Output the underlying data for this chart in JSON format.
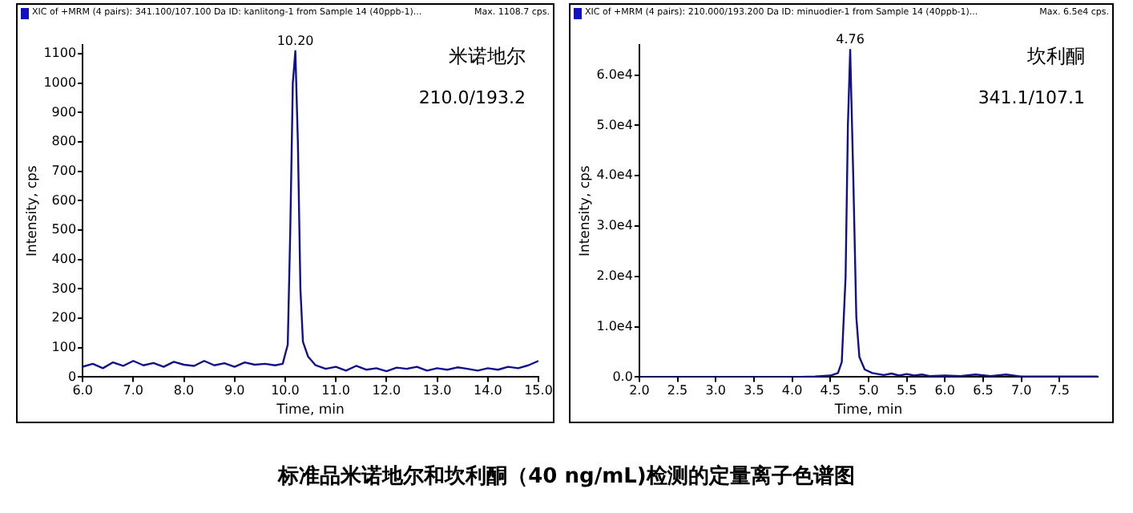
{
  "chart_data": [
    {
      "type": "line",
      "title": "标准品米诺地尔和坎利酮（40 ng/mL)检测的定量离子色谱图",
      "subtitle": "XIC of +MRM (4 pairs): 341.100/107.100 Da ID: kanlitong-1 from Sample 14 (40ppb-1)...",
      "xlabel": "Time, min",
      "ylabel": "Intensity, cps",
      "annotations": [
        "Max. 1108.7 cps.",
        "米诺地尔",
        "210.0/193.2",
        {
          "text": "10.20",
          "x": 10.2,
          "y": 1108.7
        }
      ],
      "series": [
        {
          "color": "#10108c",
          "x": [
            6.0,
            6.2,
            6.4,
            6.6,
            6.8,
            7.0,
            7.2,
            7.4,
            7.6,
            7.8,
            8.0,
            8.2,
            8.4,
            8.6,
            8.8,
            9.0,
            9.2,
            9.4,
            9.6,
            9.8,
            9.95,
            10.05,
            10.1,
            10.15,
            10.2,
            10.25,
            10.3,
            10.35,
            10.45,
            10.6,
            10.8,
            11.0,
            11.2,
            11.4,
            11.6,
            11.8,
            12.0,
            12.2,
            12.4,
            12.6,
            12.8,
            13.0,
            13.2,
            13.4,
            13.6,
            13.8,
            14.0,
            14.2,
            14.4,
            14.6,
            14.8,
            15.0
          ],
          "values": [
            35,
            45,
            30,
            50,
            38,
            55,
            40,
            48,
            35,
            52,
            42,
            38,
            55,
            40,
            47,
            35,
            50,
            42,
            45,
            40,
            45,
            110,
            500,
            1000,
            1108.7,
            800,
            300,
            120,
            70,
            40,
            28,
            35,
            22,
            38,
            25,
            30,
            20,
            32,
            28,
            35,
            22,
            30,
            25,
            33,
            28,
            22,
            30,
            25,
            35,
            30,
            40,
            55
          ]
        }
      ],
      "xlim": [
        6,
        15
      ],
      "xticks": [
        {
          "value": 6,
          "label": "6.0"
        },
        {
          "value": 7,
          "label": "7.0"
        },
        {
          "value": 8,
          "label": "8.0"
        },
        {
          "value": 9,
          "label": "9.0"
        },
        {
          "value": 10,
          "label": "10.0"
        },
        {
          "value": 11,
          "label": "11.0"
        },
        {
          "value": 12,
          "label": "12.0"
        },
        {
          "value": 13,
          "label": "13.0"
        },
        {
          "value": 14,
          "label": "14.0"
        },
        {
          "value": 15,
          "label": "15.0"
        }
      ],
      "ylim": [
        0,
        1130
      ],
      "yticks": [
        0,
        100,
        200,
        300,
        400,
        500,
        600,
        700,
        800,
        900,
        1000,
        1100
      ],
      "grid": false,
      "legend": false,
      "marker": "none",
      "line_style": "solid"
    },
    {
      "type": "line",
      "subtitle": "XIC of +MRM (4 pairs): 210.000/193.200 Da ID: minuodier-1 from Sample 14 (40ppb-1)...",
      "xlabel": "Time, min",
      "ylabel": "Intensity, cps",
      "annotations": [
        "Max. 6.5e4 cps.",
        "坎利酮",
        "341.1/107.1",
        {
          "text": "4.76",
          "x": 4.76,
          "y": 65000
        }
      ],
      "series": [
        {
          "color": "#10108c",
          "x": [
            2.0,
            2.5,
            3.0,
            3.5,
            4.0,
            4.3,
            4.5,
            4.6,
            4.65,
            4.7,
            4.73,
            4.76,
            4.8,
            4.84,
            4.88,
            4.95,
            5.05,
            5.2,
            5.3,
            5.4,
            5.5,
            5.6,
            5.7,
            5.8,
            6.0,
            6.2,
            6.4,
            6.6,
            6.8,
            7.0,
            7.5,
            8.0
          ],
          "values": [
            0,
            0,
            0,
            0,
            0,
            100,
            300,
            800,
            3000,
            20000,
            50000,
            65000,
            40000,
            12000,
            4000,
            1500,
            800,
            400,
            700,
            300,
            600,
            300,
            500,
            200,
            300,
            200,
            500,
            200,
            500,
            100,
            100,
            100
          ]
        }
      ],
      "xlim": [
        2,
        8
      ],
      "xticks": [
        {
          "value": 2,
          "label": "2.0"
        },
        {
          "value": 2.5,
          "label": "2.5"
        },
        {
          "value": 3,
          "label": "3.0"
        },
        {
          "value": 3.5,
          "label": "3.5"
        },
        {
          "value": 4,
          "label": "4.0"
        },
        {
          "value": 4.5,
          "label": "4.5"
        },
        {
          "value": 5,
          "label": "5.0"
        },
        {
          "value": 5.5,
          "label": "5.5"
        },
        {
          "value": 6,
          "label": "6.0"
        },
        {
          "value": 6.5,
          "label": "6.5"
        },
        {
          "value": 7,
          "label": "7.0"
        },
        {
          "value": 7.5,
          "label": "7.5"
        }
      ],
      "ylim": [
        0,
        66000
      ],
      "yticks": [
        {
          "value": 0,
          "label": "0.0"
        },
        {
          "value": 10000,
          "label": "1.0e4"
        },
        {
          "value": 20000,
          "label": "2.0e4"
        },
        {
          "value": 30000,
          "label": "3.0e4"
        },
        {
          "value": 40000,
          "label": "4.0e4"
        },
        {
          "value": 50000,
          "label": "5.0e4"
        },
        {
          "value": 60000,
          "label": "6.0e4"
        }
      ],
      "grid": false,
      "legend": false,
      "marker": "none",
      "line_style": "solid"
    }
  ]
}
